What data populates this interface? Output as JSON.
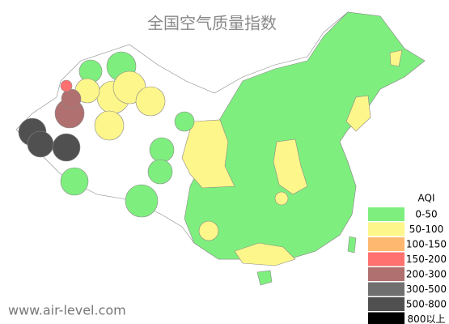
{
  "title": "全国空气质量指数",
  "legend": {
    "title": "AQI",
    "items": [
      {
        "label": "0-50",
        "color": "#7eef7e"
      },
      {
        "label": "50-100",
        "color": "#fdf68a"
      },
      {
        "label": "100-150",
        "color": "#ffb870"
      },
      {
        "label": "150-200",
        "color": "#ff7070"
      },
      {
        "label": "200-300",
        "color": "#b07070"
      },
      {
        "label": "300-500",
        "color": "#707070"
      },
      {
        "label": "500-800",
        "color": "#505050"
      },
      {
        "label": "800以上",
        "color": "#000000"
      }
    ]
  },
  "watermark": "www.air-level.com"
}
